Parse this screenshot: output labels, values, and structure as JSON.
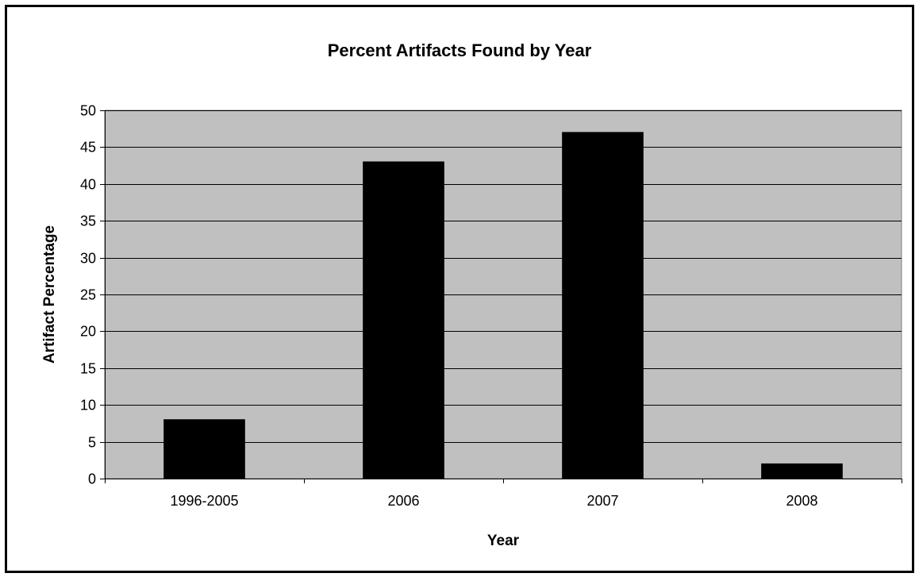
{
  "chart_data": {
    "type": "bar",
    "title": "Percent Artifacts Found by Year",
    "xlabel": "Year",
    "ylabel": "Artifact Percentage",
    "categories": [
      "1996-2005",
      "2006",
      "2007",
      "2008"
    ],
    "values": [
      8,
      43,
      47,
      2
    ],
    "ylim": [
      0,
      50
    ],
    "ytick_step": 5,
    "grid": true,
    "legend": "none",
    "colors": {
      "bar": "#000000",
      "plot_background": "#c0c0c0",
      "gridline": "#000000",
      "frame": "#000000"
    }
  }
}
